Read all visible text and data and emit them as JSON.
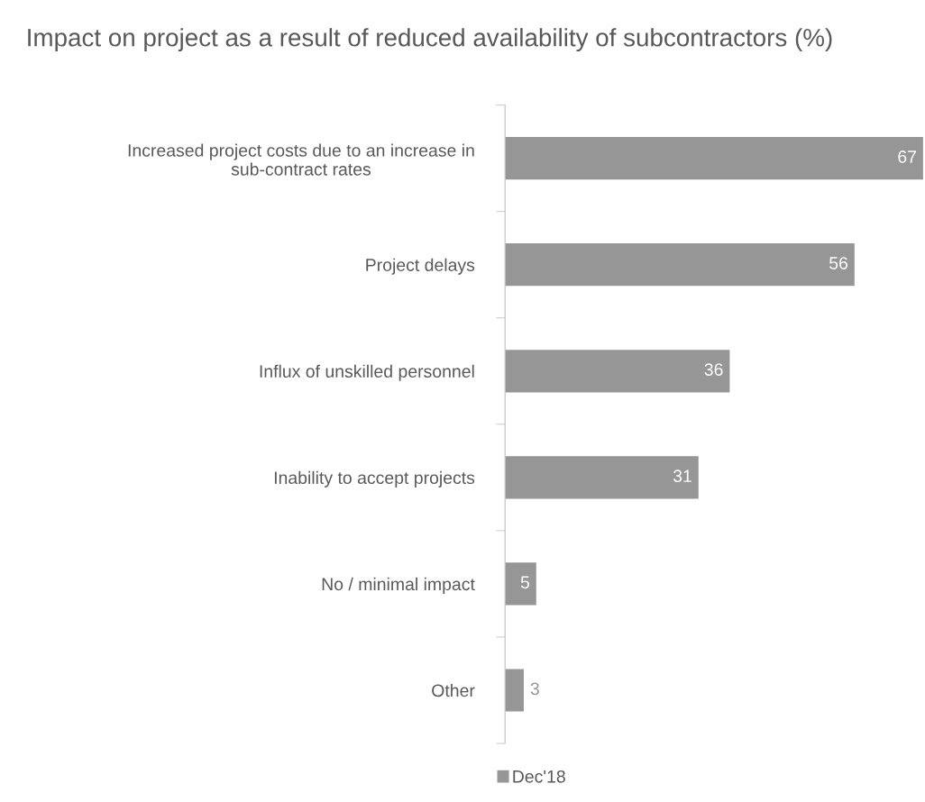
{
  "chart_data": {
    "type": "bar",
    "orientation": "horizontal",
    "title": "Impact on project as a result of reduced availability of subcontractors (%)",
    "categories": [
      "Increased project costs due to an increase in\nsub-contract rates",
      "Project delays",
      "Influx of unskilled personnel",
      "Inability to accept projects",
      "No / minimal impact",
      "Other"
    ],
    "series": [
      {
        "name": "Dec'18",
        "color": "#969696",
        "values": [
          67,
          56,
          36,
          31,
          5,
          3
        ]
      }
    ],
    "data_labels": true,
    "legend": "bottom",
    "grid": false
  }
}
